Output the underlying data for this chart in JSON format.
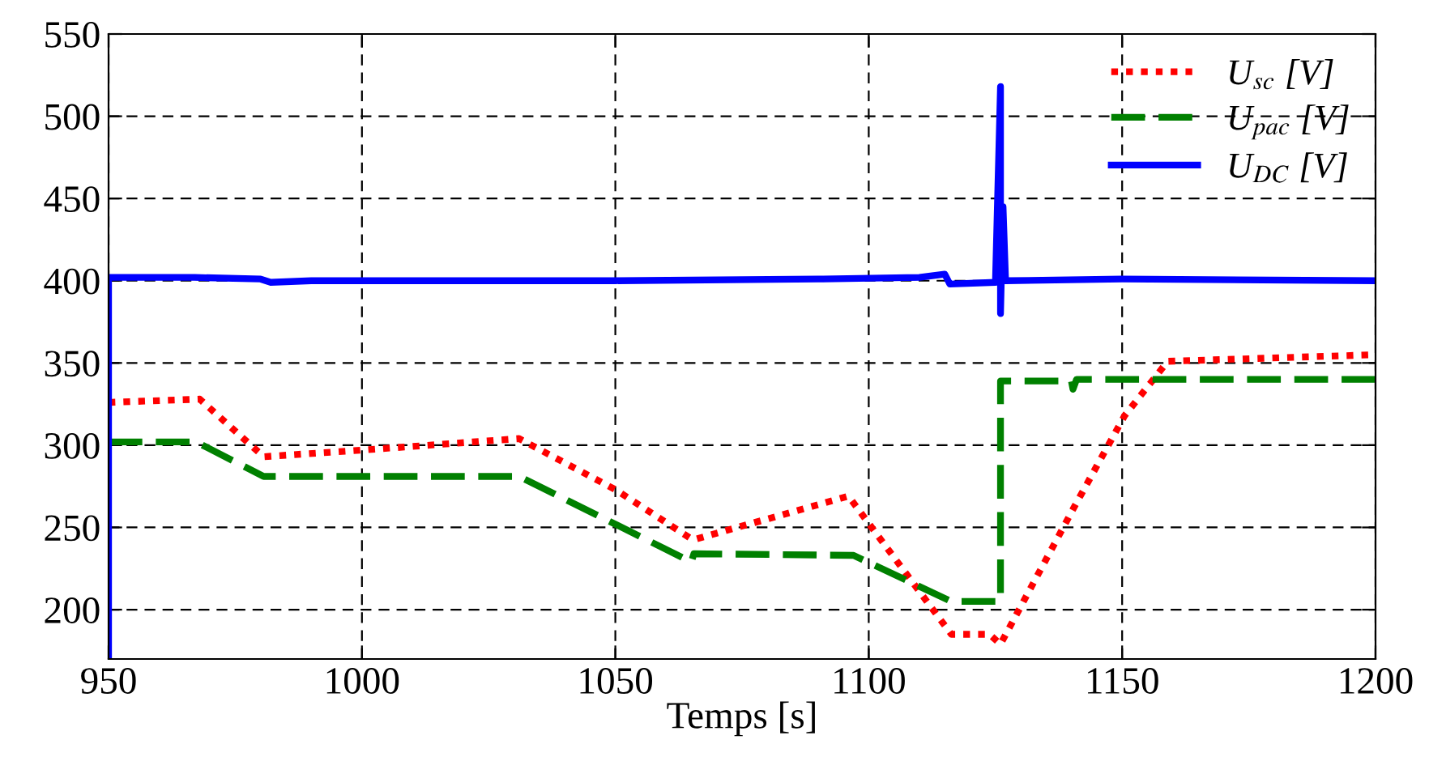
{
  "chart_data": {
    "type": "line",
    "xlabel": "Temps [s]",
    "xlim": [
      950,
      1200
    ],
    "xticks": [
      950,
      1000,
      1050,
      1100,
      1150,
      1200
    ],
    "ylim": [
      170,
      550
    ],
    "yticks": [
      200,
      250,
      300,
      350,
      400,
      450,
      500,
      550
    ],
    "grid": true,
    "legend": "top right",
    "series": [
      {
        "name": "U$_{sc}$ [V]",
        "color": "#ff0000",
        "line_style": "dotted",
        "x": [
          950,
          968,
          980.6,
          1000,
          1031,
          1050,
          1065,
          1066,
          1096,
          1116.3,
          1123.8,
          1126,
          1141,
          1150.5,
          1159,
          1200
        ],
        "values": [
          326,
          328,
          293,
          297,
          304,
          273,
          243,
          243,
          269,
          185,
          185,
          179,
          265,
          318,
          351,
          355
        ]
      },
      {
        "name": "U$_{pac}$ [V]",
        "color": "#008000",
        "line_style": "dashed",
        "x": [
          950,
          967.3,
          980.6,
          1031,
          1065,
          1065.5,
          1097,
          1116.3,
          1126,
          1126,
          1140,
          1140.3,
          1141,
          1200
        ],
        "values": [
          302,
          302,
          281,
          281,
          229,
          234,
          233,
          205,
          205,
          339,
          339,
          334,
          340,
          340
        ]
      },
      {
        "name": "U$_{DC}$ [V]",
        "color": "#0000ff",
        "line_style": "solid",
        "x": [
          950,
          950,
          967,
          980,
          982,
          990,
          1050,
          1090,
          1110,
          1115,
          1116,
          1125,
          1126,
          1126,
          1126.5,
          1127,
          1150,
          1200
        ],
        "values": [
          170,
          402,
          402,
          401,
          399,
          400,
          400,
          401,
          402,
          404,
          398,
          399,
          518,
          380,
          445,
          400,
          401,
          400
        ]
      }
    ]
  }
}
